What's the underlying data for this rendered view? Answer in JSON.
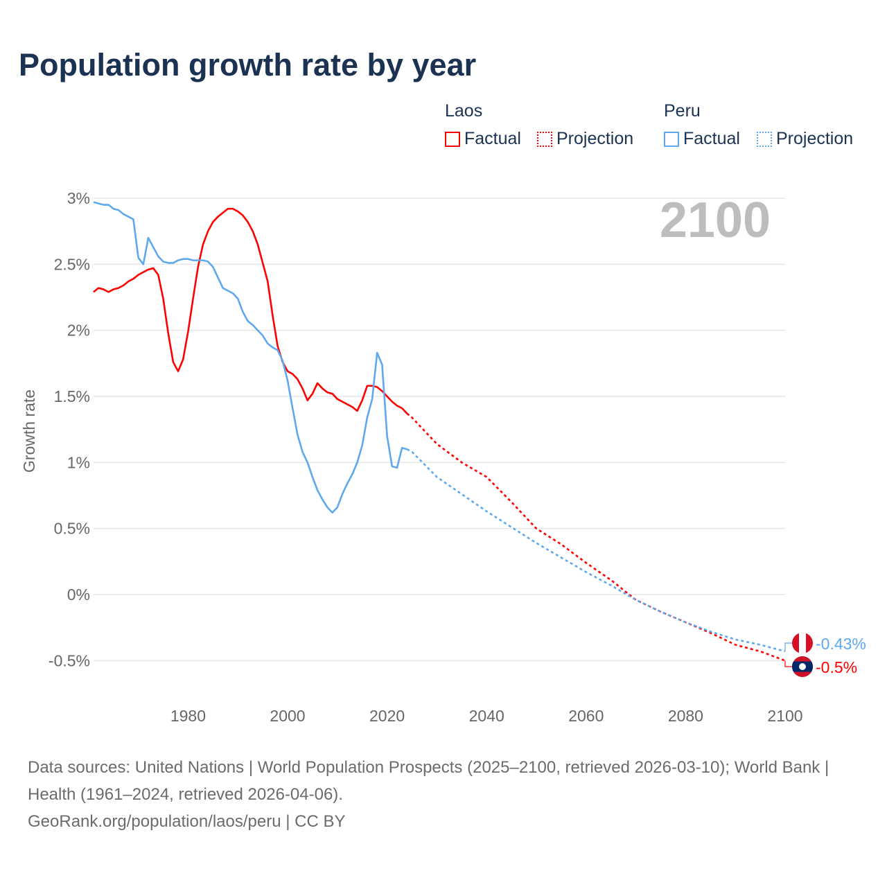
{
  "title": "Population growth rate by year",
  "legend": {
    "groups": [
      {
        "name": "Laos",
        "factual": "Factual",
        "projection": "Projection",
        "color": "#ff0000"
      },
      {
        "name": "Peru",
        "factual": "Factual",
        "projection": "Projection",
        "color": "#5ea8ee"
      }
    ]
  },
  "chart_data": {
    "type": "line",
    "title": "Population growth rate by year",
    "ylabel": "Growth rate",
    "xlabel": "",
    "year_display": "2100",
    "xlim": [
      1961,
      2100
    ],
    "ylim": [
      -0.5,
      3
    ],
    "xticks": [
      "1980",
      "2000",
      "2020",
      "2040",
      "2060",
      "2080",
      "2100"
    ],
    "yticks": [
      "3%",
      "2.5%",
      "2%",
      "1.5%",
      "1%",
      "0.5%",
      "0%",
      "-0.5%"
    ],
    "ytick_values": [
      3,
      2.5,
      2,
      1.5,
      1,
      0.5,
      0,
      -0.5
    ],
    "grid": true,
    "legend_position": "top-right",
    "series": [
      {
        "name": "Laos",
        "color": "#ff0000",
        "end_label": "-0.5%",
        "factual": {
          "start": 1961,
          "values": [
            2.29,
            2.32,
            2.31,
            2.29,
            2.31,
            2.32,
            2.34,
            2.37,
            2.39,
            2.42,
            2.44,
            2.46,
            2.47,
            2.42,
            2.24,
            1.98,
            1.76,
            1.69,
            1.78,
            1.99,
            2.24,
            2.48,
            2.65,
            2.75,
            2.82,
            2.86,
            2.89,
            2.92,
            2.92,
            2.9,
            2.87,
            2.82,
            2.75,
            2.65,
            2.51,
            2.37,
            2.11,
            1.88,
            1.76,
            1.69,
            1.67,
            1.63,
            1.56,
            1.47,
            1.52,
            1.6,
            1.56,
            1.53,
            1.52,
            1.48,
            1.46,
            1.44,
            1.42,
            1.39,
            1.47,
            1.58,
            1.58,
            1.57,
            1.54,
            1.5,
            1.46,
            1.43,
            1.41,
            1.37
          ]
        },
        "projection": {
          "x": [
            2024,
            2025,
            2030,
            2035,
            2040,
            2045,
            2050,
            2055,
            2060,
            2065,
            2070,
            2075,
            2080,
            2085,
            2090,
            2095,
            2100
          ],
          "values": [
            1.37,
            1.34,
            1.14,
            1.0,
            0.89,
            0.7,
            0.5,
            0.38,
            0.24,
            0.11,
            -0.04,
            -0.13,
            -0.21,
            -0.29,
            -0.38,
            -0.43,
            -0.5
          ]
        }
      },
      {
        "name": "Peru",
        "color": "#5ea8ee",
        "end_label": "-0.43%",
        "factual": {
          "start": 1961,
          "values": [
            2.97,
            2.96,
            2.95,
            2.95,
            2.92,
            2.91,
            2.88,
            2.86,
            2.84,
            2.55,
            2.5,
            2.7,
            2.63,
            2.56,
            2.52,
            2.51,
            2.51,
            2.53,
            2.54,
            2.54,
            2.53,
            2.53,
            2.53,
            2.52,
            2.48,
            2.4,
            2.32,
            2.3,
            2.28,
            2.24,
            2.14,
            2.07,
            2.04,
            2.0,
            1.96,
            1.9,
            1.87,
            1.85,
            1.77,
            1.62,
            1.41,
            1.21,
            1.08,
            1.0,
            0.89,
            0.79,
            0.72,
            0.66,
            0.62,
            0.66,
            0.76,
            0.84,
            0.91,
            1.0,
            1.13,
            1.34,
            1.48,
            1.83,
            1.74,
            1.2,
            0.97,
            0.96,
            1.11,
            1.1
          ]
        },
        "projection": {
          "x": [
            2024,
            2025,
            2030,
            2035,
            2040,
            2045,
            2050,
            2055,
            2060,
            2065,
            2070,
            2075,
            2080,
            2085,
            2090,
            2095,
            2100
          ],
          "values": [
            1.1,
            1.08,
            0.89,
            0.76,
            0.63,
            0.51,
            0.39,
            0.28,
            0.17,
            0.07,
            -0.04,
            -0.13,
            -0.21,
            -0.28,
            -0.34,
            -0.38,
            -0.43
          ]
        }
      }
    ]
  },
  "footer": {
    "sources": "Data sources: United Nations | World Population Prospects (2025–2100, retrieved 2026-03-10); World Bank | Health (1961–2024, retrieved 2026-04-06).",
    "credit": "GeoRank.org/population/laos/peru | CC BY"
  }
}
